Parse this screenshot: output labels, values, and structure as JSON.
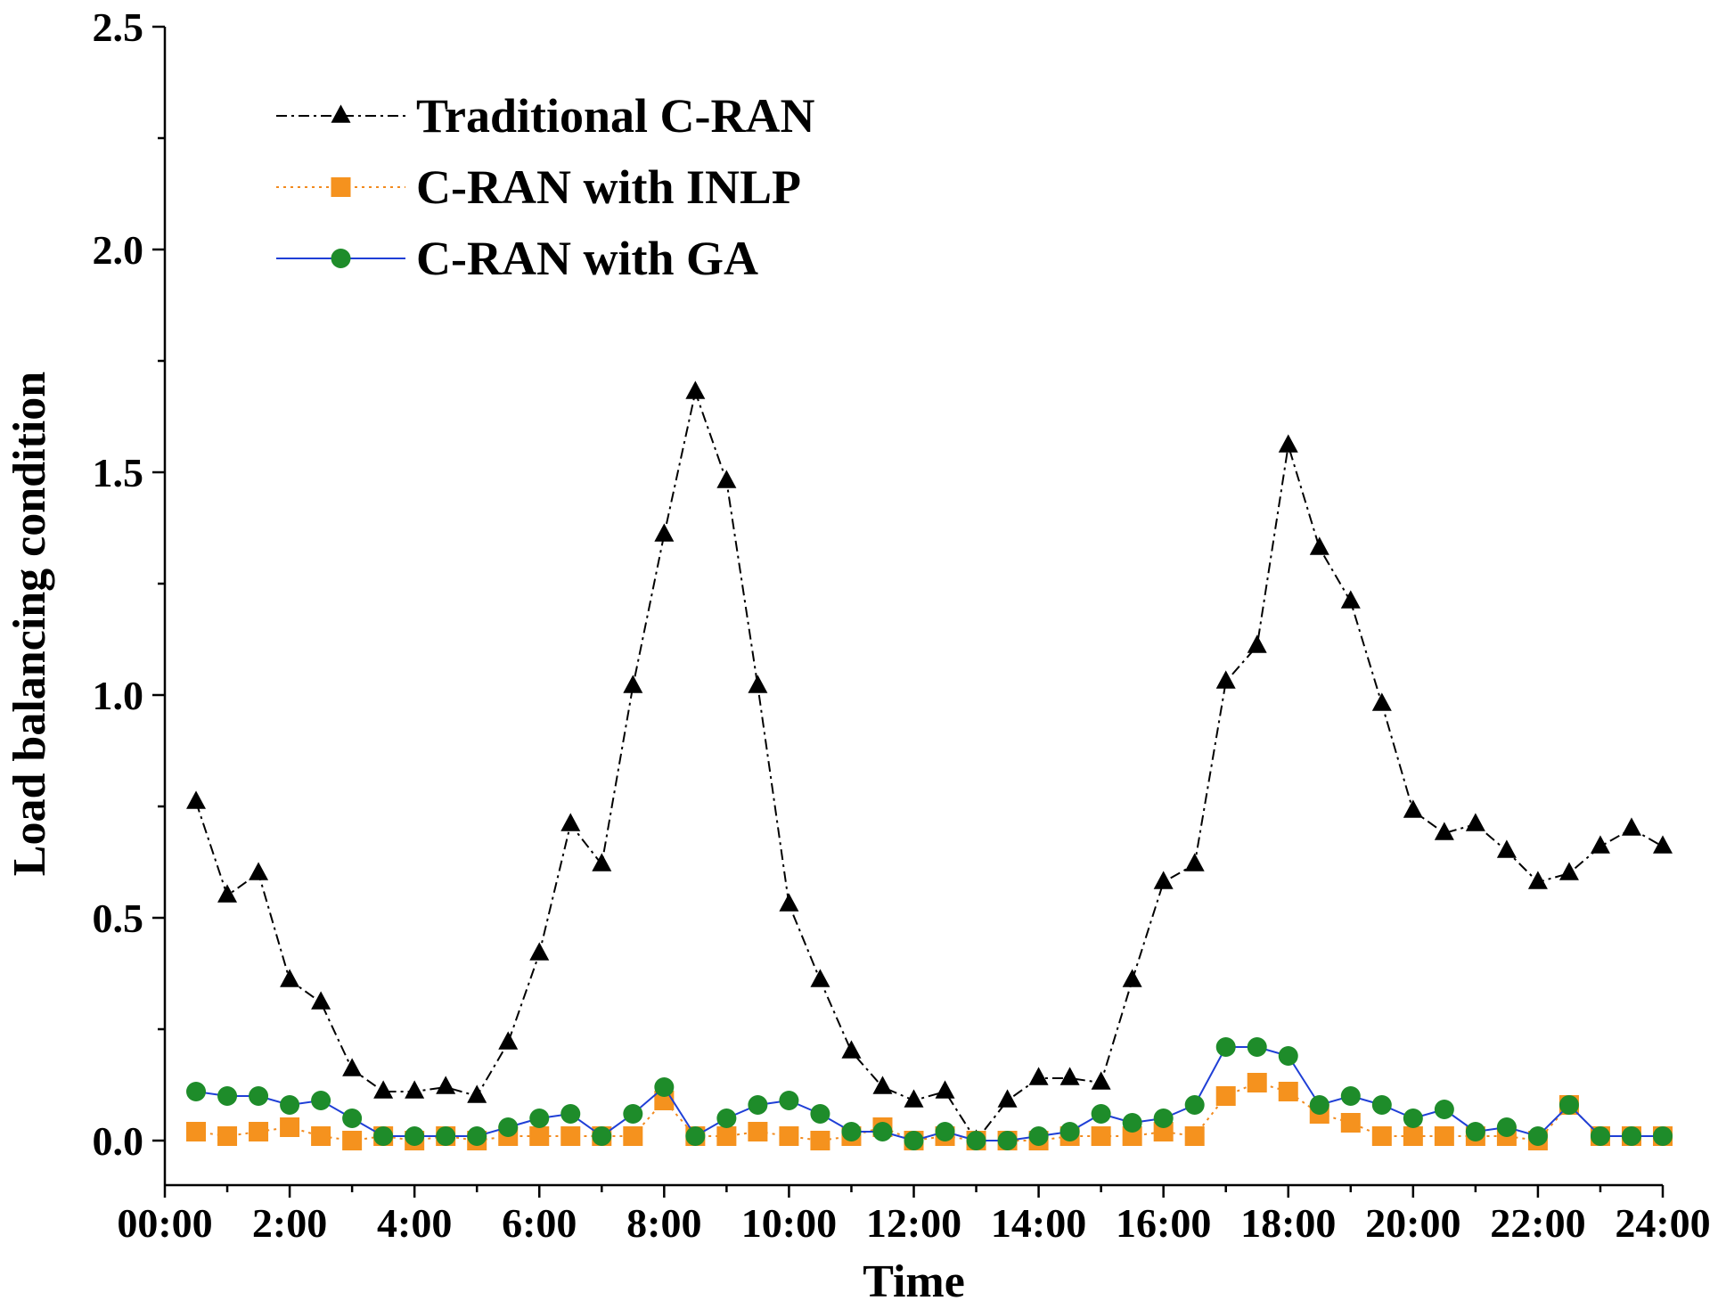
{
  "chart_data": {
    "type": "line",
    "xlabel": "Time",
    "ylabel": "Load balancing condition",
    "xlim": [
      0,
      24
    ],
    "ylim": [
      -0.1,
      2.5
    ],
    "x_ticks": [
      {
        "value": 0,
        "label": "00:00"
      },
      {
        "value": 2,
        "label": "2:00"
      },
      {
        "value": 4,
        "label": "4:00"
      },
      {
        "value": 6,
        "label": "6:00"
      },
      {
        "value": 8,
        "label": "8:00"
      },
      {
        "value": 10,
        "label": "10:00"
      },
      {
        "value": 12,
        "label": "12:00"
      },
      {
        "value": 14,
        "label": "14:00"
      },
      {
        "value": 16,
        "label": "16:00"
      },
      {
        "value": 18,
        "label": "18:00"
      },
      {
        "value": 20,
        "label": "20:00"
      },
      {
        "value": 22,
        "label": "22:00"
      },
      {
        "value": 24,
        "label": "24:00"
      }
    ],
    "y_ticks": [
      {
        "value": 0.0,
        "label": "0.0"
      },
      {
        "value": 0.5,
        "label": "0.5"
      },
      {
        "value": 1.0,
        "label": "1.0"
      },
      {
        "value": 1.5,
        "label": "1.5"
      },
      {
        "value": 2.0,
        "label": "2.0"
      },
      {
        "value": 2.5,
        "label": "2.5"
      }
    ],
    "legend_position": "top-left",
    "x": [
      0.5,
      1,
      1.5,
      2,
      2.5,
      3,
      3.5,
      4,
      4.5,
      5,
      5.5,
      6,
      6.5,
      7,
      7.5,
      8,
      8.5,
      9,
      9.5,
      10,
      10.5,
      11,
      11.5,
      12,
      12.5,
      13,
      13.5,
      14,
      14.5,
      15,
      15.5,
      16,
      16.5,
      17,
      17.5,
      18,
      18.5,
      19,
      19.5,
      20,
      20.5,
      21,
      21.5,
      22,
      22.5,
      23,
      23.5,
      24
    ],
    "series": [
      {
        "name": "Traditional C-RAN",
        "color": "#000000",
        "dash": "dash-dot",
        "marker": "triangle",
        "marker_color": "#000000",
        "values": [
          0.76,
          0.55,
          0.6,
          0.36,
          0.31,
          0.16,
          0.11,
          0.11,
          0.12,
          0.1,
          0.22,
          0.42,
          0.71,
          0.62,
          1.02,
          1.36,
          1.68,
          1.48,
          1.02,
          0.53,
          0.36,
          0.2,
          0.12,
          0.09,
          0.11,
          0.0,
          0.09,
          0.14,
          0.14,
          0.13,
          0.36,
          0.58,
          0.62,
          1.03,
          1.11,
          1.56,
          1.33,
          1.21,
          0.98,
          0.74,
          0.69,
          0.71,
          0.65,
          0.58,
          0.6,
          0.66,
          0.7,
          0.66
        ]
      },
      {
        "name": "C-RAN with INLP",
        "color": "#F28A1E",
        "dash": "dotted",
        "marker": "square",
        "marker_color": "#F5921E",
        "values": [
          0.02,
          0.01,
          0.02,
          0.03,
          0.01,
          0.0,
          0.01,
          0.0,
          0.01,
          0.0,
          0.01,
          0.01,
          0.01,
          0.01,
          0.01,
          0.09,
          0.01,
          0.01,
          0.02,
          0.01,
          0.0,
          0.01,
          0.03,
          0.0,
          0.01,
          0.0,
          0.0,
          0.0,
          0.01,
          0.01,
          0.01,
          0.02,
          0.01,
          0.1,
          0.13,
          0.11,
          0.06,
          0.04,
          0.01,
          0.01,
          0.01,
          0.01,
          0.01,
          0.0,
          0.08,
          0.01,
          0.01,
          0.01
        ]
      },
      {
        "name": "C-RAN with GA",
        "color": "#1F3FD6",
        "dash": "solid",
        "marker": "circle",
        "marker_color": "#1E8C2A",
        "values": [
          0.11,
          0.1,
          0.1,
          0.08,
          0.09,
          0.05,
          0.01,
          0.01,
          0.01,
          0.01,
          0.03,
          0.05,
          0.06,
          0.01,
          0.06,
          0.12,
          0.01,
          0.05,
          0.08,
          0.09,
          0.06,
          0.02,
          0.02,
          0.0,
          0.02,
          0.0,
          0.0,
          0.01,
          0.02,
          0.06,
          0.04,
          0.05,
          0.08,
          0.21,
          0.21,
          0.19,
          0.08,
          0.1,
          0.08,
          0.05,
          0.07,
          0.02,
          0.03,
          0.01,
          0.08,
          0.01,
          0.01,
          0.01
        ]
      }
    ]
  }
}
